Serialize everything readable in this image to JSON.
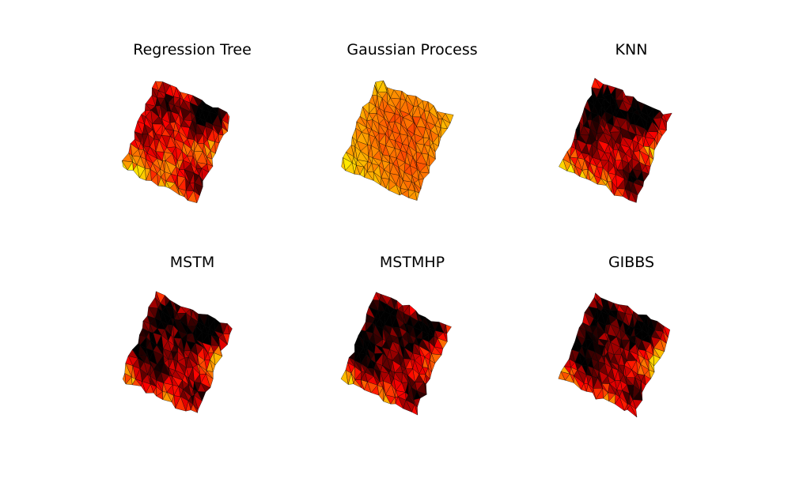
{
  "chart_data": [
    {
      "type": "heatmap",
      "title": "Regression Tree",
      "colormap": "hot",
      "edgecolor": "#000000",
      "axis": "off",
      "hot_regions": [
        0.6,
        0.9,
        0.2,
        0.55,
        0.25,
        0.4
      ],
      "smooth": false
    },
    {
      "type": "heatmap",
      "title": "Gaussian Process",
      "colormap": "hot",
      "edgecolor": "#000000",
      "axis": "off",
      "hot_regions": [
        0.1,
        0.15,
        0.05,
        0.2,
        0.05,
        0.1
      ],
      "smooth": true
    },
    {
      "type": "heatmap",
      "title": "KNN",
      "colormap": "hot",
      "edgecolor": "#000000",
      "axis": "off",
      "hot_regions": [
        0.9,
        0.85,
        0.3,
        0.7,
        0.4,
        0.6
      ],
      "smooth": false
    },
    {
      "type": "heatmap",
      "title": "MSTM",
      "colormap": "hot",
      "edgecolor": "#000000",
      "axis": "off",
      "hot_regions": [
        0.8,
        0.9,
        0.5,
        0.6,
        0.45,
        0.7
      ],
      "smooth": false
    },
    {
      "type": "heatmap",
      "title": "MSTMHP",
      "colormap": "hot",
      "edgecolor": "#000000",
      "axis": "off",
      "hot_regions": [
        0.85,
        0.8,
        0.45,
        0.65,
        0.5,
        0.75
      ],
      "smooth": false
    },
    {
      "type": "heatmap",
      "title": "GIBBS",
      "colormap": "hot",
      "edgecolor": "#000000",
      "axis": "off",
      "hot_regions": [
        0.8,
        0.85,
        0.5,
        0.6,
        0.45,
        0.7
      ],
      "smooth": false
    }
  ]
}
